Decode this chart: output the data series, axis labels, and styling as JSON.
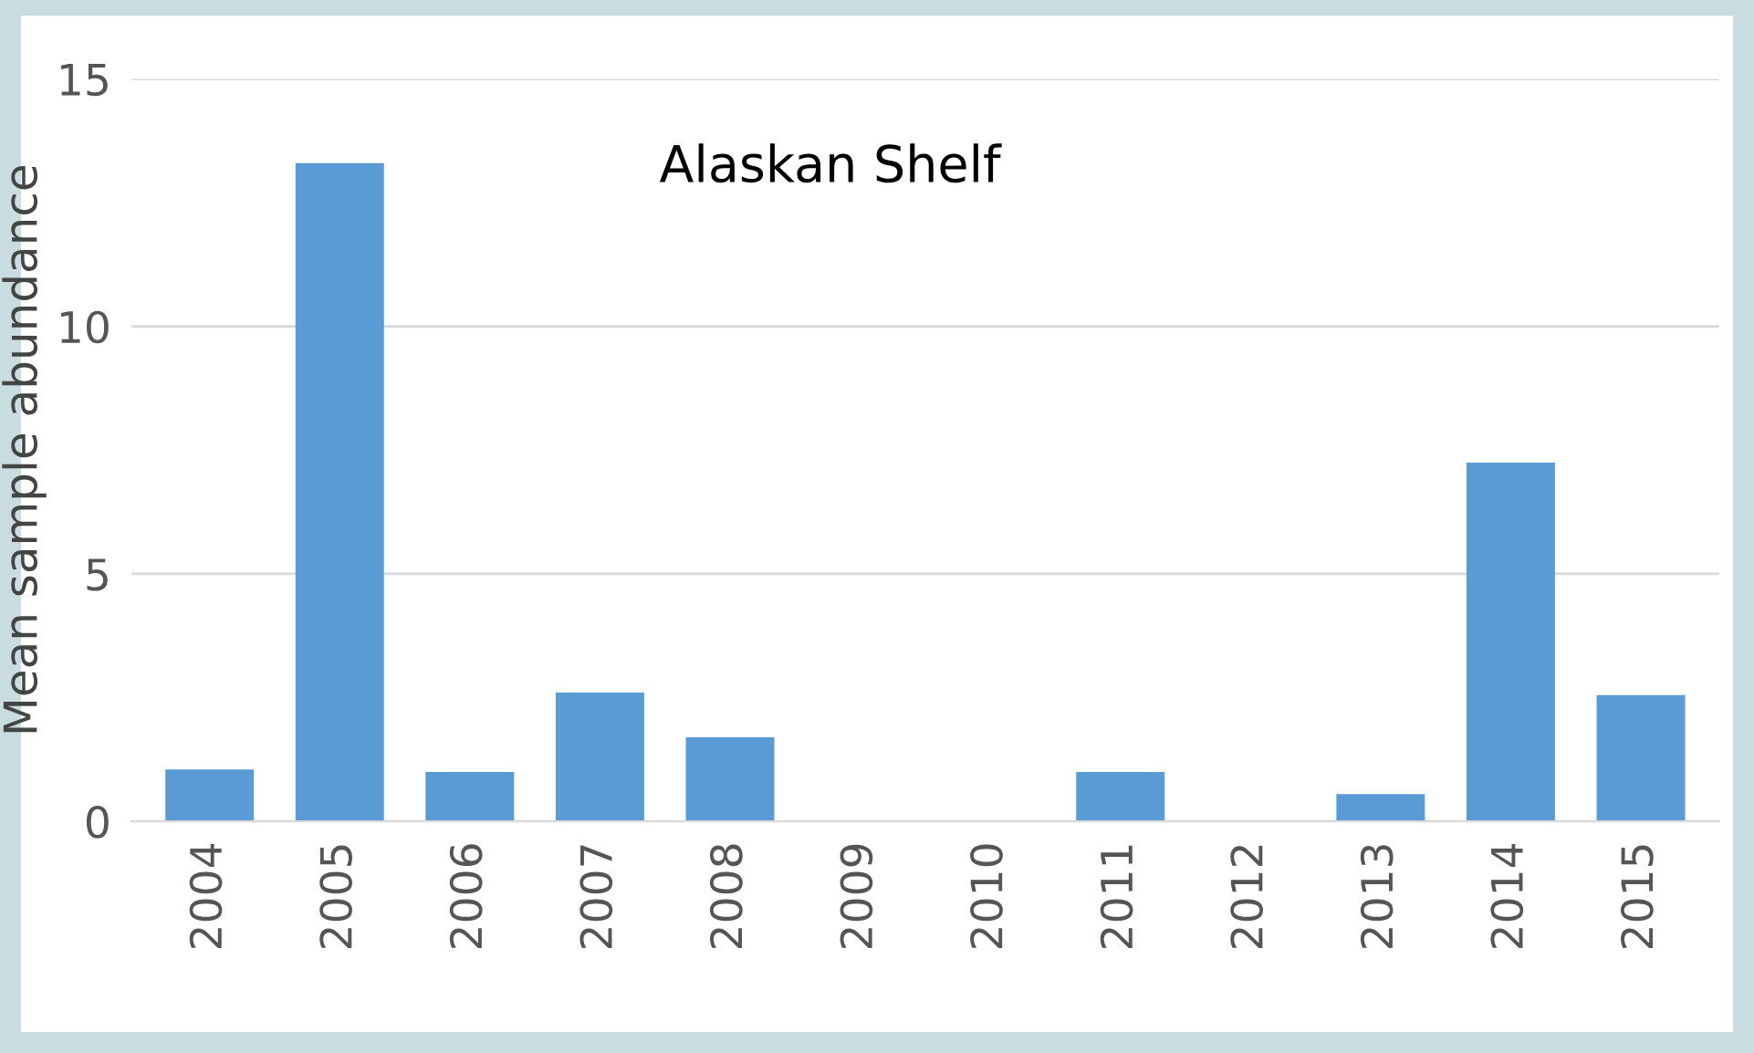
{
  "chart_data": {
    "type": "bar",
    "annotations": [
      "Alaskan Shelf"
    ],
    "ylabel": "Mean sample abundance",
    "categories": [
      "2004",
      "2005",
      "2006",
      "2007",
      "2008",
      "2009",
      "2010",
      "2011",
      "2012",
      "2013",
      "2014",
      "2015"
    ],
    "values": [
      1.05,
      13.3,
      1.0,
      2.6,
      1.7,
      0,
      0,
      1.0,
      0,
      0.55,
      7.25,
      2.55
    ],
    "color": "#5b9bd5",
    "ylim": [
      0,
      15
    ],
    "yticks": [
      0,
      5,
      10,
      15
    ],
    "grid": "y",
    "legend": false
  }
}
